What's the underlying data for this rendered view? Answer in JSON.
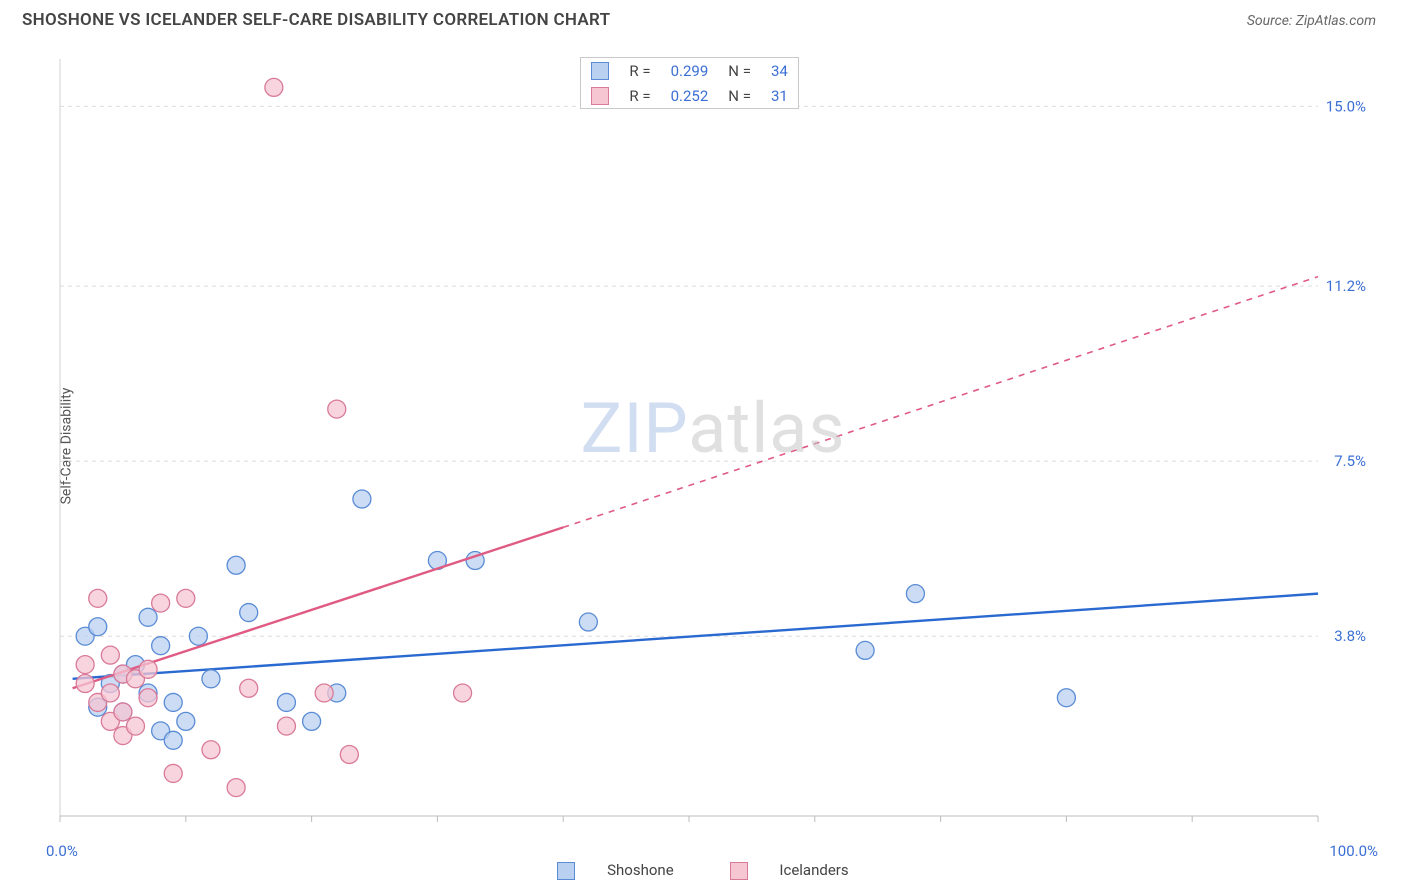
{
  "title": "SHOSHONE VS ICELANDER SELF-CARE DISABILITY CORRELATION CHART",
  "source": "Source: ZipAtlas.com",
  "y_axis_label": "Self-Care Disability",
  "watermark_zip": "ZIP",
  "watermark_atlas": "atlas",
  "chart": {
    "type": "scatter",
    "xlim": [
      0,
      100
    ],
    "ylim": [
      0,
      16
    ],
    "x_start_label": "0.0%",
    "x_end_label": "100.0%",
    "y_tick_labels": [
      "3.8%",
      "7.5%",
      "11.2%",
      "15.0%"
    ],
    "y_tick_vals": [
      3.8,
      7.5,
      11.2,
      15.0
    ],
    "x_tick_positions": [
      0,
      10,
      20,
      30,
      40,
      50,
      60,
      70,
      80,
      90,
      100
    ],
    "grid_color": "#dcdcdc",
    "background_color": "#ffffff",
    "series": [
      {
        "name": "Shoshone",
        "color_fill": "#b9d0f0",
        "color_stroke": "#5a8cd6",
        "line_color": "#2a6ad0",
        "r_value": "0.299",
        "n_value": "34",
        "trend": {
          "x1": 1,
          "y1": 2.9,
          "x2": 100,
          "y2": 4.7,
          "dashed_from": 100
        },
        "points_xy": [
          [
            2,
            3.8
          ],
          [
            3,
            2.3
          ],
          [
            3,
            4.0
          ],
          [
            4,
            2.8
          ],
          [
            5,
            3.0
          ],
          [
            5,
            2.2
          ],
          [
            6,
            3.2
          ],
          [
            7,
            2.6
          ],
          [
            7,
            4.2
          ],
          [
            8,
            1.8
          ],
          [
            8,
            3.6
          ],
          [
            9,
            2.4
          ],
          [
            9,
            1.6
          ],
          [
            10,
            2.0
          ],
          [
            11,
            3.8
          ],
          [
            12,
            2.9
          ],
          [
            14,
            5.3
          ],
          [
            15,
            4.3
          ],
          [
            18,
            2.4
          ],
          [
            20,
            2.0
          ],
          [
            22,
            2.6
          ],
          [
            24,
            6.7
          ],
          [
            30,
            5.4
          ],
          [
            33,
            5.4
          ],
          [
            42,
            4.1
          ],
          [
            64,
            3.5
          ],
          [
            68,
            4.7
          ],
          [
            80,
            2.5
          ]
        ]
      },
      {
        "name": "Icelanders",
        "color_fill": "#f6c6d3",
        "color_stroke": "#d97a99",
        "line_color": "#e05b84",
        "r_value": "0.252",
        "n_value": "31",
        "trend": {
          "x1": 1,
          "y1": 2.7,
          "x2": 40,
          "y2": 6.1,
          "dashed_to_x": 100,
          "dashed_to_y": 11.4
        },
        "points_xy": [
          [
            2,
            2.8
          ],
          [
            2,
            3.2
          ],
          [
            3,
            2.4
          ],
          [
            3,
            4.6
          ],
          [
            4,
            2.0
          ],
          [
            4,
            2.6
          ],
          [
            4,
            3.4
          ],
          [
            5,
            1.7
          ],
          [
            5,
            2.2
          ],
          [
            5,
            3.0
          ],
          [
            6,
            2.9
          ],
          [
            6,
            1.9
          ],
          [
            7,
            2.5
          ],
          [
            7,
            3.1
          ],
          [
            8,
            4.5
          ],
          [
            9,
            0.9
          ],
          [
            10,
            4.6
          ],
          [
            12,
            1.4
          ],
          [
            14,
            0.6
          ],
          [
            15,
            2.7
          ],
          [
            17,
            15.4
          ],
          [
            18,
            1.9
          ],
          [
            21,
            2.6
          ],
          [
            22,
            8.6
          ],
          [
            23,
            1.3
          ],
          [
            32,
            2.6
          ]
        ]
      }
    ]
  },
  "legend_labels": {
    "R": "R =",
    "N": "N ="
  },
  "bottom_legend": [
    "Shoshone",
    "Icelanders"
  ]
}
